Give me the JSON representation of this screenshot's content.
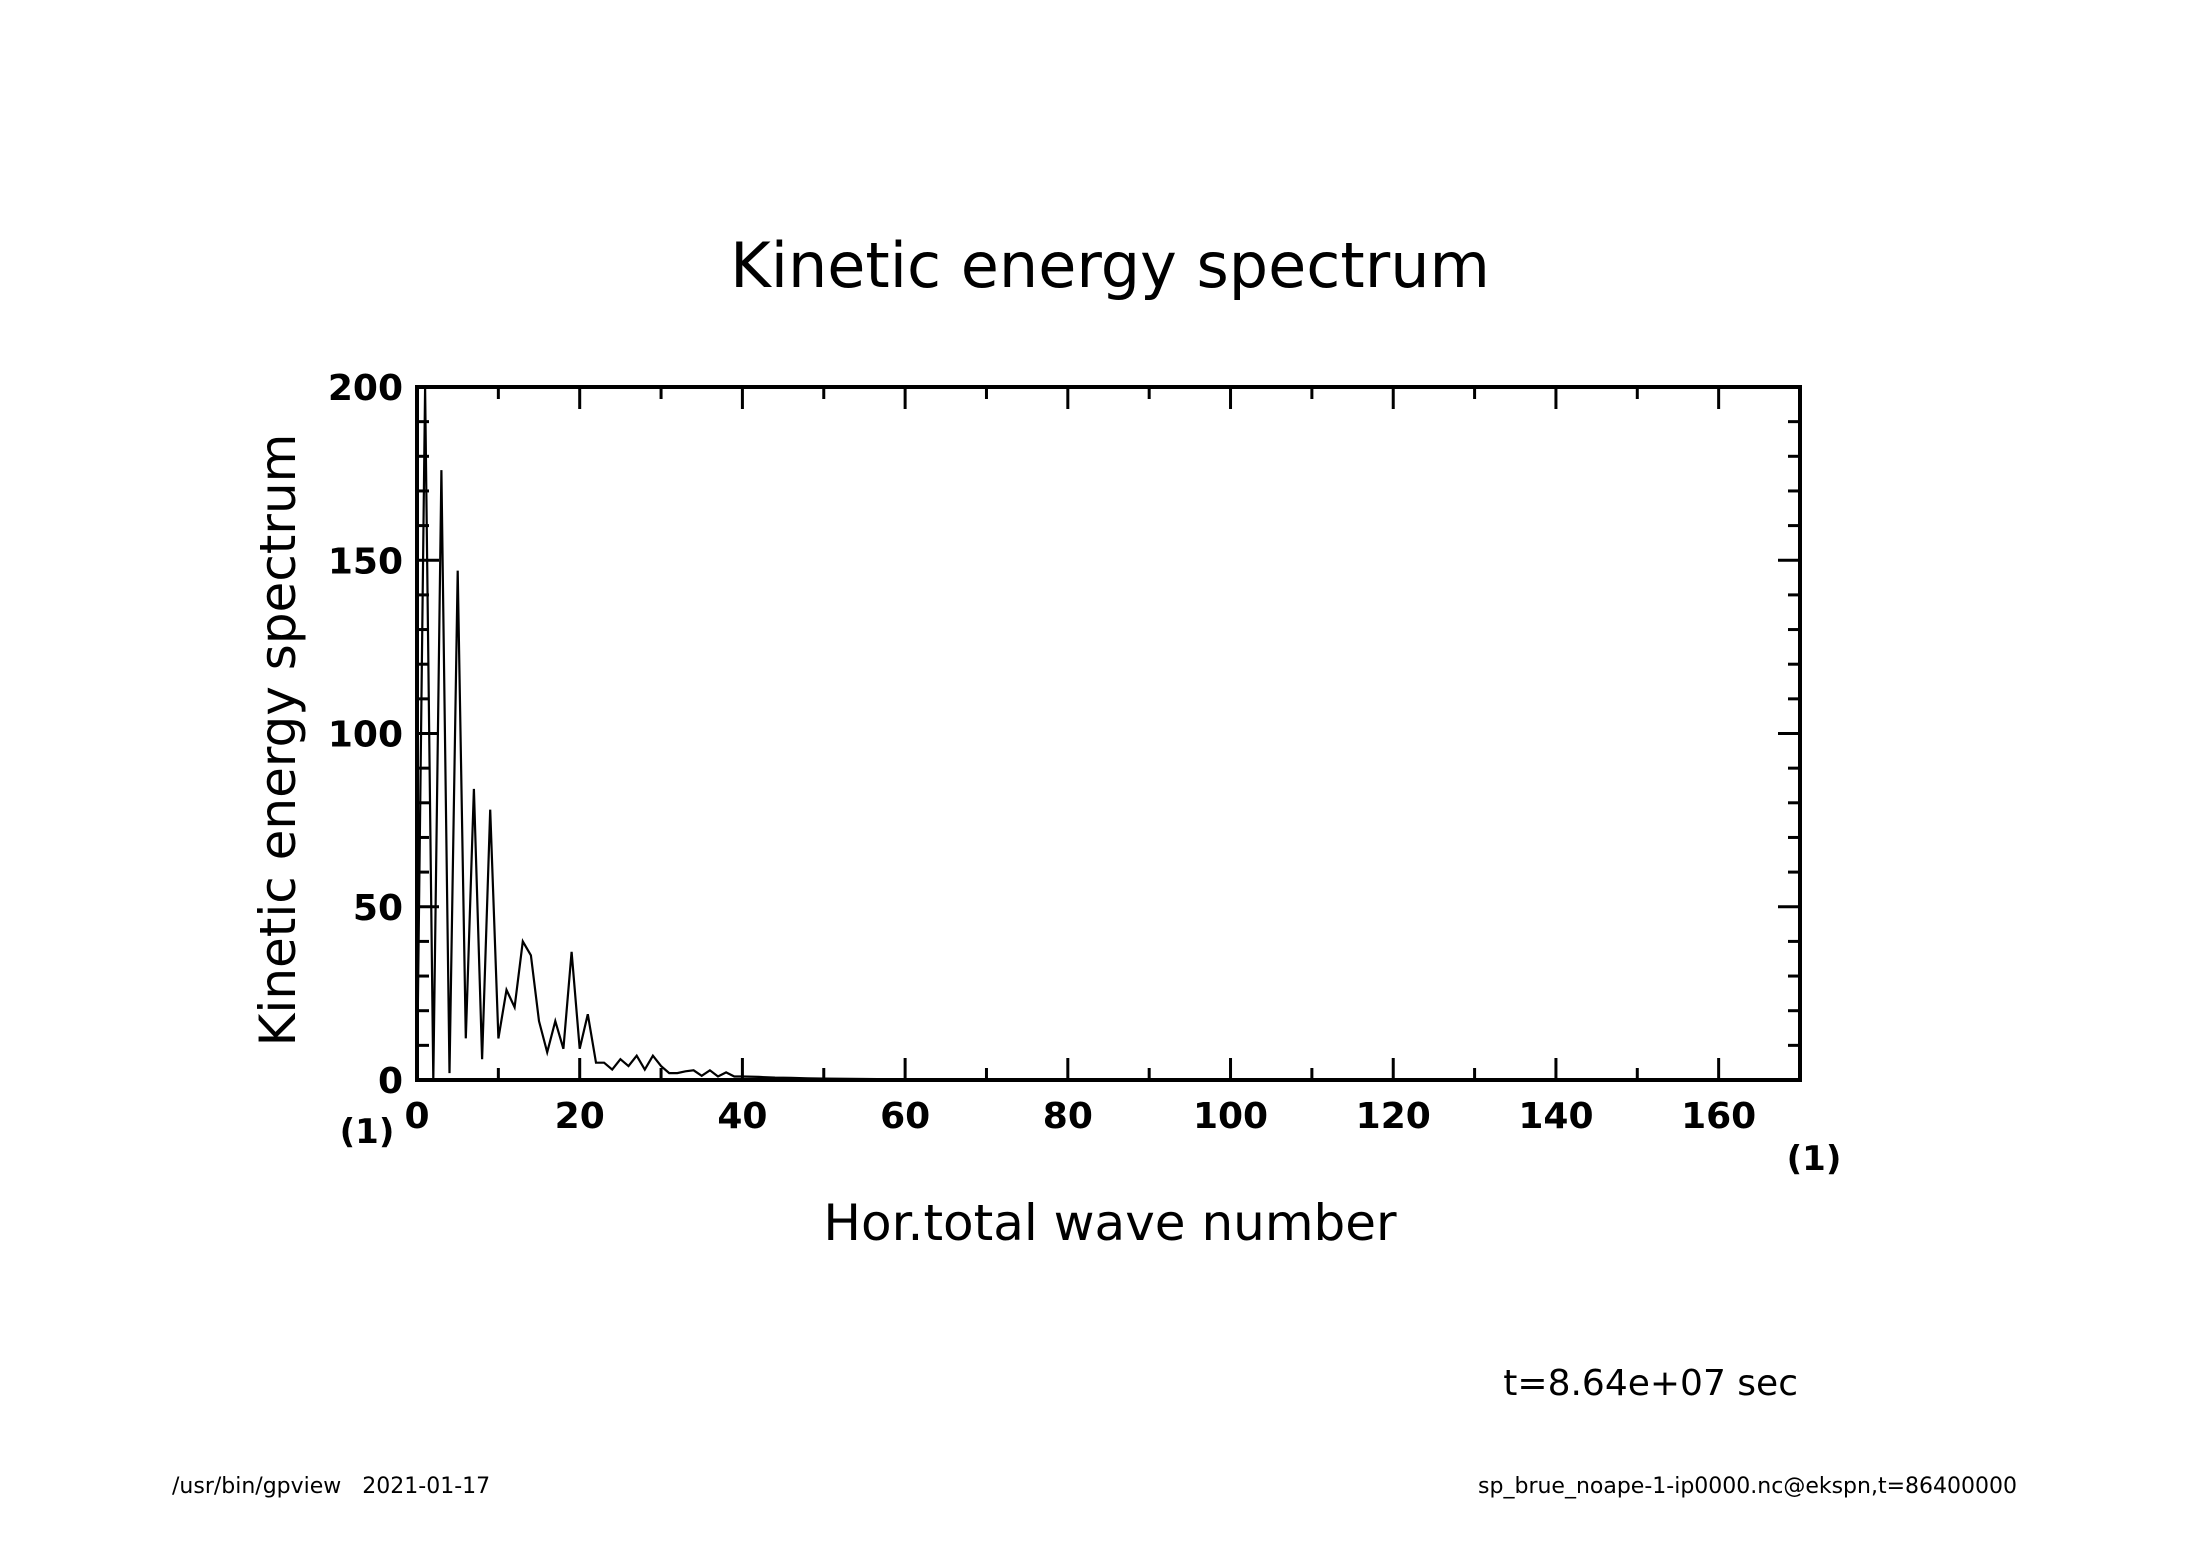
{
  "chart_data": {
    "type": "line",
    "title": "Kinetic energy spectrum",
    "xlabel": "Hor.total wave number",
    "ylabel": "Kinetic energy spectrum",
    "x_unit": "(1)",
    "y_unit": "(1)",
    "xlim": [
      0,
      170
    ],
    "ylim": [
      0,
      200
    ],
    "xticks": [
      0,
      20,
      40,
      60,
      80,
      100,
      120,
      140,
      160
    ],
    "yticks": [
      0,
      50,
      100,
      150,
      200
    ],
    "grid": false,
    "series": [
      {
        "x": [
          0,
          1,
          2,
          3,
          4,
          5,
          6,
          7,
          8,
          9,
          10,
          11,
          12,
          13,
          14,
          15,
          16,
          17,
          18,
          19,
          20,
          21,
          22,
          23,
          24,
          25,
          26,
          27,
          28,
          29,
          30,
          31,
          32,
          33,
          34,
          35,
          36,
          37,
          38,
          39,
          40,
          42,
          44,
          46,
          48,
          50,
          55,
          60,
          65,
          70,
          80,
          90,
          100,
          120,
          140,
          160,
          170
        ],
        "y": [
          0,
          200,
          0,
          176,
          2,
          147,
          12,
          84,
          6,
          78,
          12,
          26,
          21,
          40,
          36,
          17,
          8,
          17,
          9,
          37,
          9,
          19,
          5,
          5,
          3,
          6,
          4,
          7,
          3,
          7,
          4,
          2,
          2,
          2.5,
          2.8,
          1.2,
          2.8,
          1,
          2.2,
          1,
          1,
          0.9,
          0.7,
          0.6,
          0.5,
          0.4,
          0.3,
          0.2,
          0.15,
          0.1,
          0.05,
          0.03,
          0.02,
          0.01,
          0.01,
          0.01,
          0.01
        ]
      }
    ]
  },
  "annotations": {
    "time": "t=8.64e+07 sec"
  },
  "footer": {
    "left": "/usr/bin/gpview   2021-01-17",
    "right": "sp_brue_noape-1-ip0000.nc@ekspn,t=86400000"
  }
}
